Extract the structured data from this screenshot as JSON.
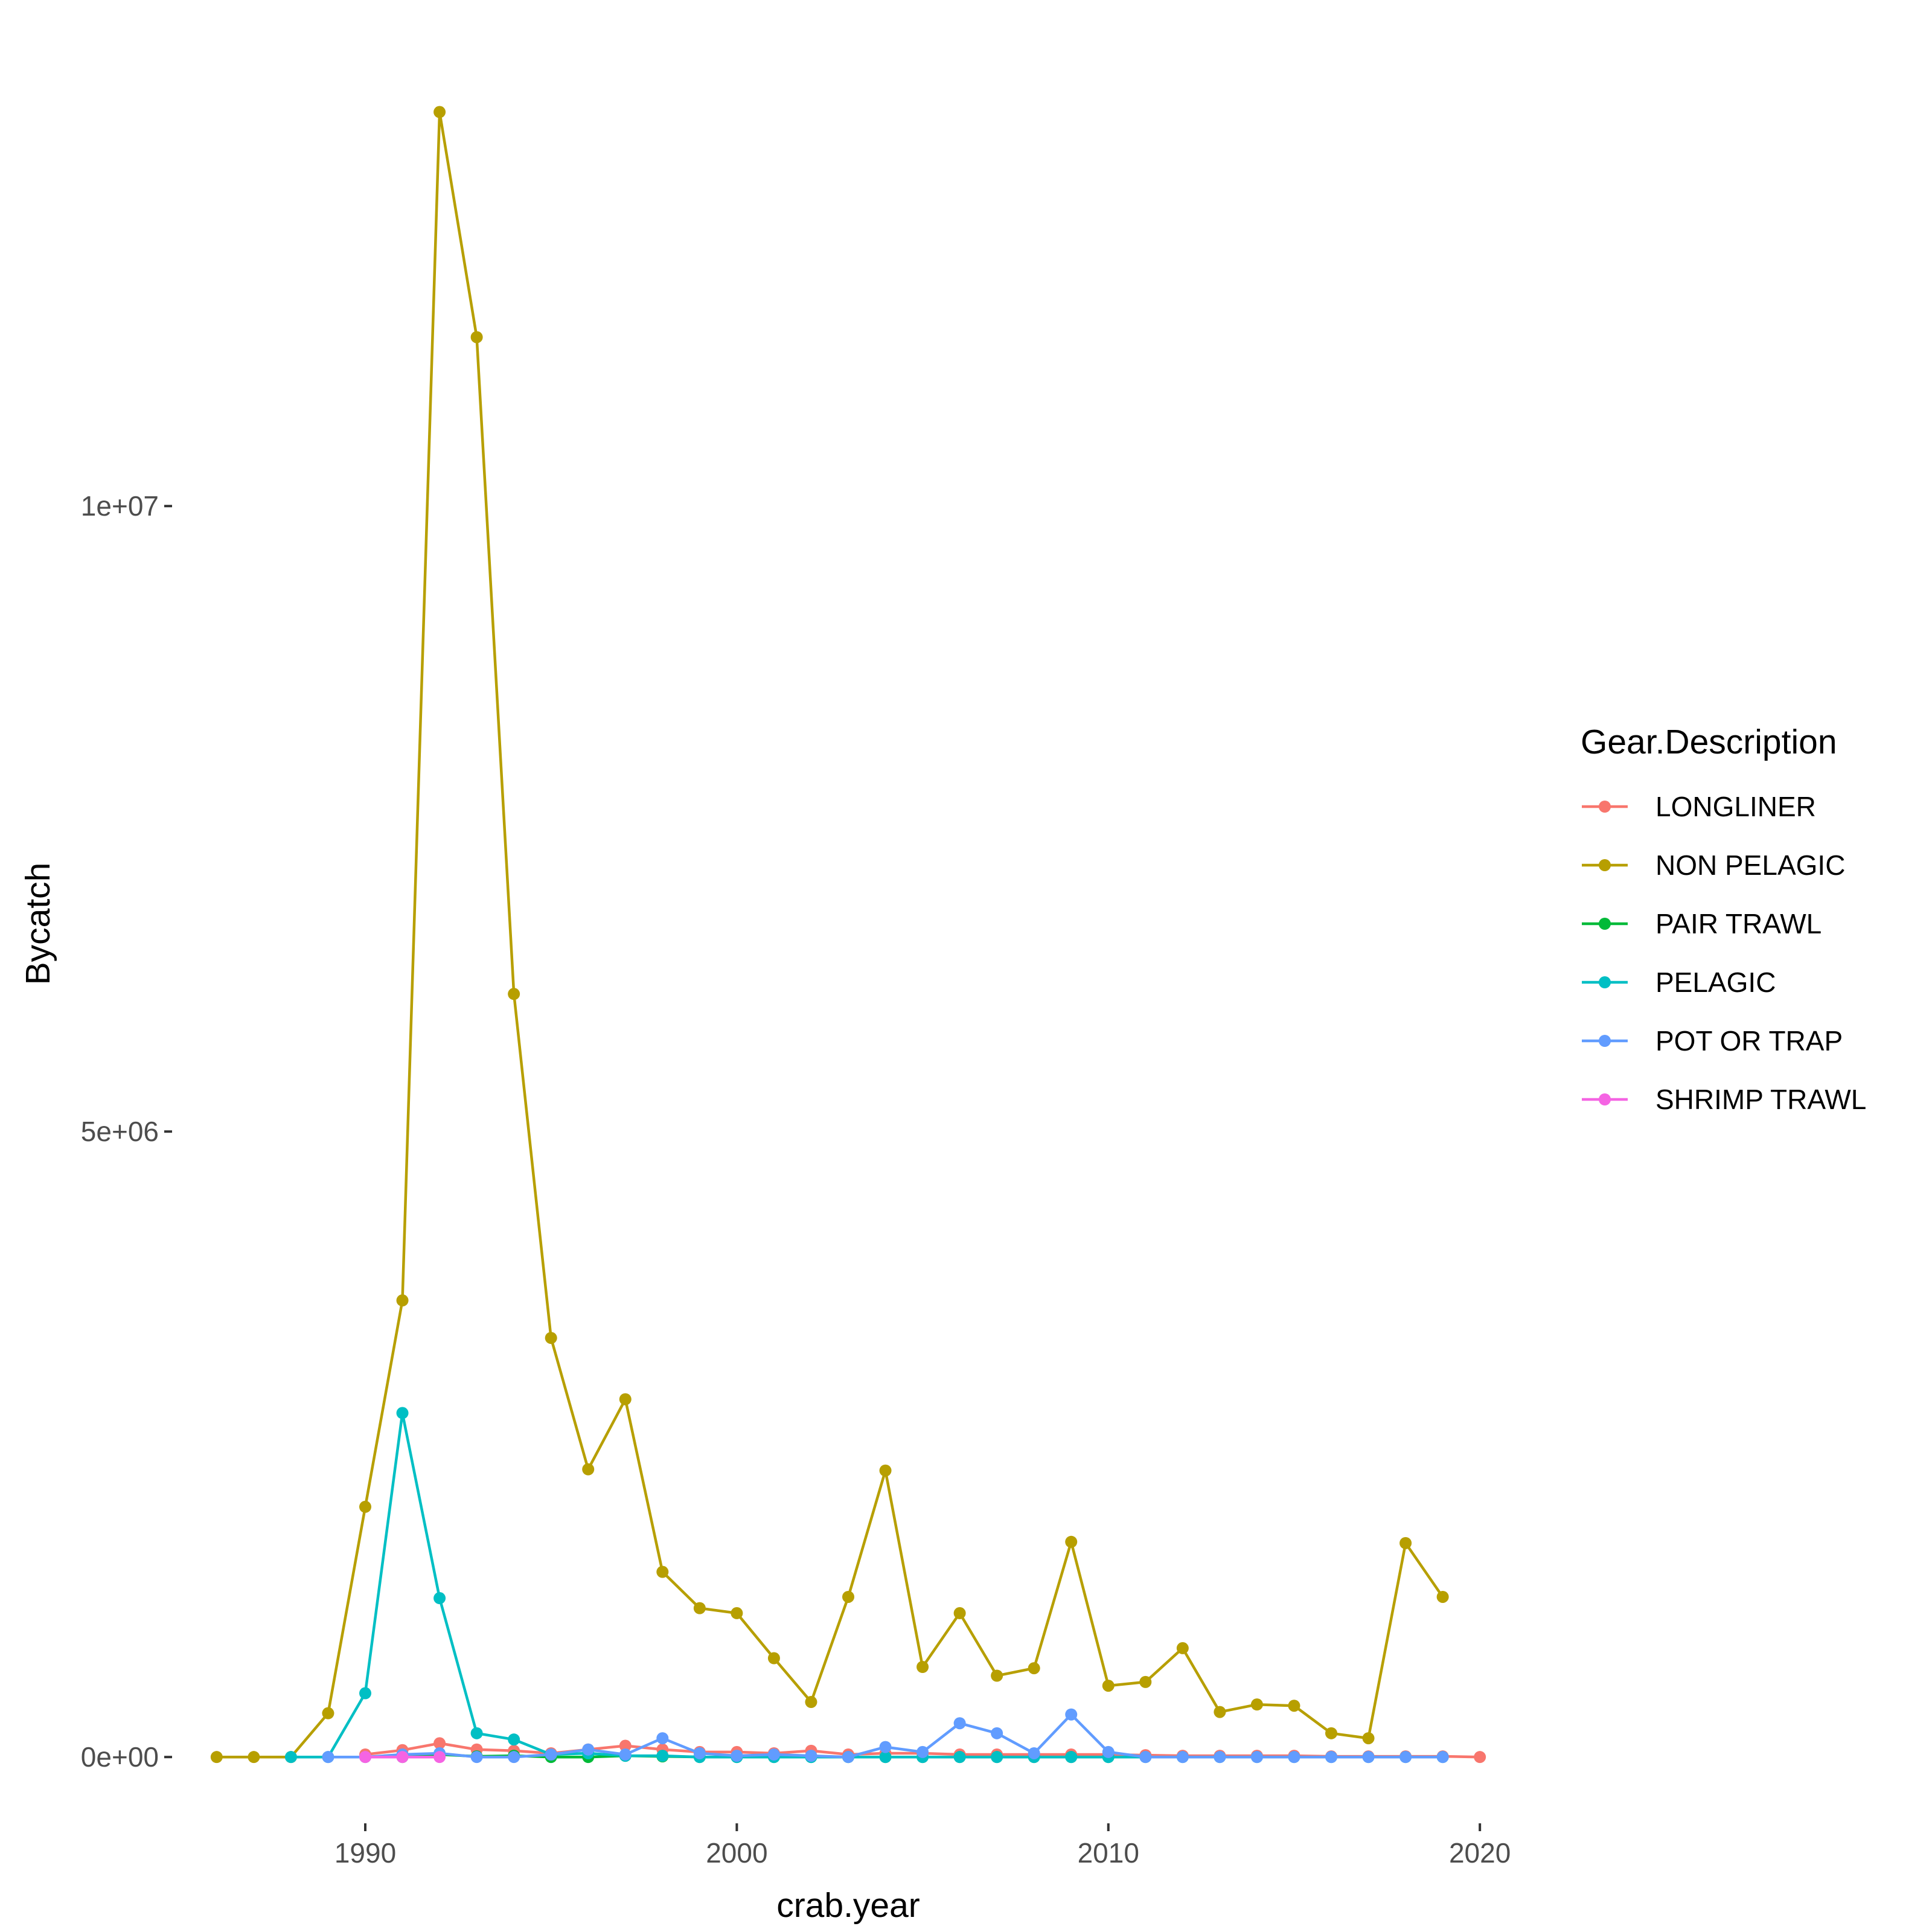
{
  "chart_data": {
    "type": "line",
    "title": "",
    "xlabel": "crab.year",
    "ylabel": "Bycatch",
    "xlim": [
      1984.8,
      2021.2
    ],
    "ylim": [
      -530000,
      13780000
    ],
    "x_ticks": [
      1990,
      2000,
      2010,
      2020
    ],
    "x_tick_labels": [
      "1990",
      "2000",
      "2010",
      "2020"
    ],
    "y_ticks": [
      0,
      5000000,
      10000000
    ],
    "y_tick_labels": [
      "0e+00",
      "5e+06",
      "1e+07"
    ],
    "grid": false,
    "legend": {
      "title": "Gear.Description",
      "position": "right"
    },
    "series": [
      {
        "name": "LONGLINER",
        "color": "#F8766D",
        "x": [
          1990,
          1991,
          1992,
          1993,
          1994,
          1995,
          1996,
          1997,
          1998,
          1999,
          2000,
          2001,
          2002,
          2003,
          2004,
          2005,
          2006,
          2007,
          2008,
          2009,
          2010,
          2011,
          2012,
          2013,
          2014,
          2015,
          2016,
          2017,
          2018,
          2019,
          2020
        ],
        "y": [
          20000,
          55000,
          110000,
          60000,
          50000,
          30000,
          60000,
          90000,
          60000,
          40000,
          40000,
          30000,
          50000,
          20000,
          30000,
          30000,
          20000,
          20000,
          20000,
          20000,
          20000,
          15000,
          10000,
          10000,
          10000,
          10000,
          5000,
          5000,
          5000,
          5000,
          0
        ]
      },
      {
        "name": "NON PELAGIC",
        "color": "#B79F00",
        "x": [
          1986,
          1987,
          1988,
          1989,
          1990,
          1991,
          1992,
          1993,
          1994,
          1995,
          1996,
          1997,
          1998,
          1999,
          2000,
          2001,
          2002,
          2003,
          2004,
          2005,
          2006,
          2007,
          2008,
          2009,
          2010,
          2011,
          2012,
          2013,
          2014,
          2015,
          2016,
          2017,
          2018,
          2019
        ],
        "y": [
          0,
          0,
          0,
          350000,
          2000000,
          3650000,
          13150000,
          11350000,
          6100000,
          3350000,
          2300000,
          2860000,
          1480000,
          1190000,
          1150000,
          790000,
          440000,
          1280000,
          2290000,
          720000,
          1150000,
          650000,
          710000,
          1720000,
          570000,
          600000,
          870000,
          360000,
          420000,
          410000,
          190000,
          150000,
          1710000,
          1280000
        ]
      },
      {
        "name": "PAIR TRAWL",
        "color": "#00BA38",
        "x": [
          1991,
          1992,
          1993,
          1994,
          1995,
          1996,
          1997,
          1998,
          1999,
          2000,
          2001,
          2002,
          2003,
          2004,
          2005,
          2006,
          2007,
          2008,
          2009,
          2010
        ],
        "y": [
          0,
          20000,
          5000,
          10000,
          0,
          0,
          10000,
          5000,
          0,
          0,
          0,
          0,
          0,
          0,
          0,
          0,
          0,
          0,
          0,
          0
        ]
      },
      {
        "name": "PELAGIC",
        "color": "#00BFC4",
        "x": [
          1988,
          1989,
          1990,
          1991,
          1992,
          1993,
          1994,
          1995,
          1996,
          1997,
          1998,
          1999,
          2000,
          2001,
          2002,
          2003,
          2004,
          2005,
          2006,
          2007,
          2008,
          2009,
          2010,
          2011,
          2012,
          2013,
          2014,
          2015,
          2016,
          2017,
          2018,
          2019
        ],
        "y": [
          0,
          0,
          510000,
          2750000,
          1270000,
          190000,
          140000,
          20000,
          30000,
          10000,
          10000,
          0,
          0,
          0,
          0,
          0,
          0,
          0,
          0,
          0,
          0,
          0,
          0,
          0,
          0,
          0,
          0,
          0,
          0,
          0,
          0,
          0
        ]
      },
      {
        "name": "POT OR TRAP",
        "color": "#619CFF",
        "x": [
          1989,
          1990,
          1991,
          1992,
          1993,
          1994,
          1995,
          1996,
          1997,
          1998,
          1999,
          2000,
          2001,
          2002,
          2003,
          2004,
          2005,
          2006,
          2007,
          2008,
          2009,
          2010,
          2011,
          2012,
          2013,
          2014,
          2015,
          2016,
          2017,
          2018,
          2019
        ],
        "y": [
          0,
          0,
          20000,
          30000,
          0,
          0,
          20000,
          60000,
          20000,
          150000,
          30000,
          10000,
          20000,
          10000,
          0,
          80000,
          40000,
          270000,
          190000,
          30000,
          340000,
          40000,
          0,
          0,
          0,
          0,
          0,
          0,
          0,
          0,
          0
        ]
      },
      {
        "name": "SHRIMP TRAWL",
        "color": "#F564E3",
        "x": [
          1990,
          1991,
          1992
        ],
        "y": [
          0,
          0,
          0
        ]
      }
    ]
  }
}
